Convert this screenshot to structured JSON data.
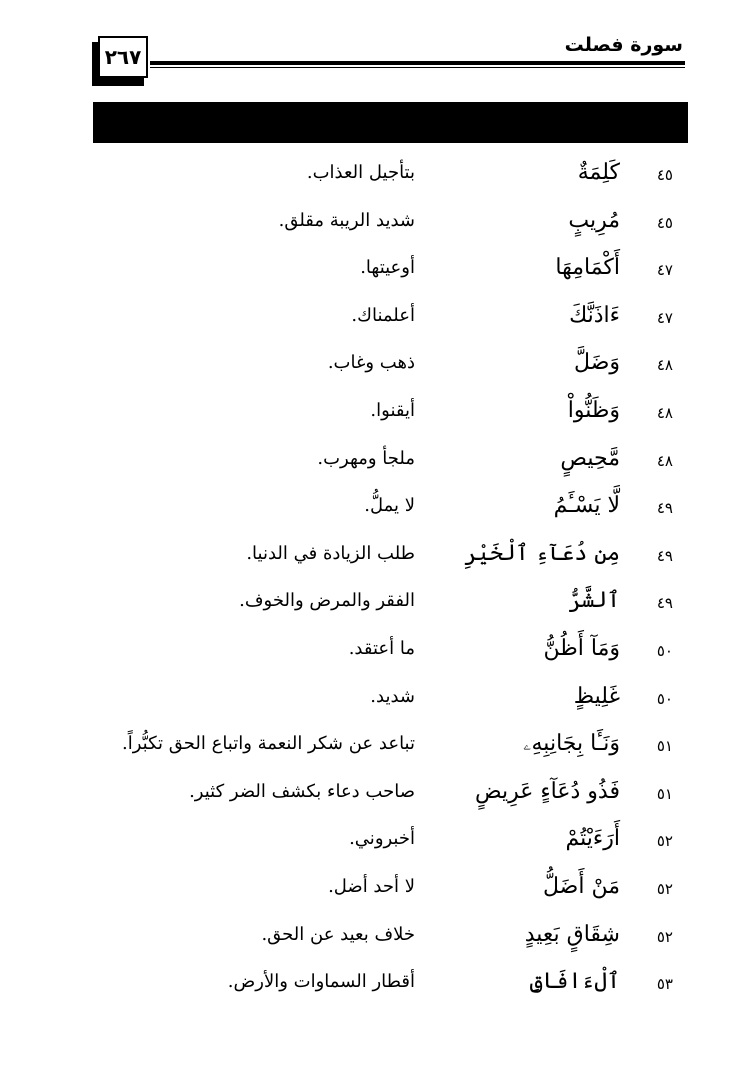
{
  "header": {
    "surah_title": "سورة فصلت",
    "page_number": "٢٦٧"
  },
  "rows": [
    {
      "verse": "٤٥",
      "word": "كَلِمَةٌ",
      "meaning": "بتأجيل العذاب."
    },
    {
      "verse": "٤٥",
      "word": "مُرِيبٍ",
      "meaning": "شديد الريبة مقلق."
    },
    {
      "verse": "٤٧",
      "word": "أَكْمَامِهَا",
      "meaning": "أوعيتها."
    },
    {
      "verse": "٤٧",
      "word": "ءَاذَنَّكَ",
      "meaning": "أعلمناك."
    },
    {
      "verse": "٤٨",
      "word": "وَضَلَّ",
      "meaning": "ذهب وغاب."
    },
    {
      "verse": "٤٨",
      "word": "وَظَنُّواْ",
      "meaning": "أيقنوا."
    },
    {
      "verse": "٤٨",
      "word": "مَّحِيصٍ",
      "meaning": "ملجأ ومهرب."
    },
    {
      "verse": "٤٩",
      "word": "لَّا يَسْـَٔمُ",
      "meaning": "لا يملُّ."
    },
    {
      "verse": "٤٩",
      "word": "مِن دُعَآءِ ٱلْخَيْرِ",
      "meaning": "طلب الزيادة في الدنيا."
    },
    {
      "verse": "٤٩",
      "word": "ٱلشَّرُّ",
      "meaning": "الفقر والمرض والخوف."
    },
    {
      "verse": "٥٠",
      "word": "وَمَآ أَظُنُّ",
      "meaning": "ما أعتقد."
    },
    {
      "verse": "٥٠",
      "word": "غَلِيظٍ",
      "meaning": "شديد."
    },
    {
      "verse": "٥١",
      "word": "وَنَـَٔا بِجَانِبِهِۦ",
      "meaning": "تباعد عن شكر النعمة واتباع الحق تكبُّراً."
    },
    {
      "verse": "٥١",
      "word": "فَذُو دُعَآءٍ عَرِيضٍ",
      "meaning": "صاحب دعاء بكشف الضر كثير."
    },
    {
      "verse": "٥٢",
      "word": "أَرَءَيْتُمْ",
      "meaning": "أخبروني."
    },
    {
      "verse": "٥٢",
      "word": "مَنْ أَضَلُّ",
      "meaning": "لا أحد أضل."
    },
    {
      "verse": "٥٢",
      "word": "شِقَاقٍ بَعِيدٍ",
      "meaning": "خلاف بعيد عن الحق."
    },
    {
      "verse": "٥٣",
      "word": "ٱلْءَافَاقِ",
      "meaning": "أقطار السماوات والأرض."
    }
  ]
}
